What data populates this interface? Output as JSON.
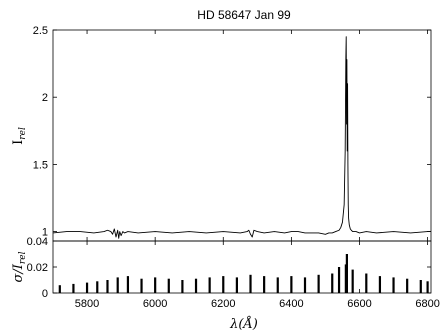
{
  "chart_data": [
    {
      "type": "line",
      "title": "HD 58647 Jan 99",
      "ylabel": "I",
      "ylabel_sub": "rel",
      "xlim": [
        5700,
        6810
      ],
      "ylim": [
        0.93,
        2.5
      ],
      "yticks": [
        1,
        1.5,
        2,
        2.5
      ],
      "ytick_labels": [
        "1",
        "1.5",
        "2",
        "2.5"
      ],
      "xticks": [
        5800,
        6000,
        6200,
        6400,
        6600,
        6800
      ],
      "series": [
        {
          "values_description": "relative intensity",
          "x": [
            5700,
            5740,
            5780,
            5820,
            5850,
            5860,
            5870,
            5875,
            5880,
            5885,
            5890,
            5893,
            5896,
            5900,
            5905,
            5910,
            5920,
            5950,
            6000,
            6050,
            6100,
            6150,
            6200,
            6250,
            6270,
            6275,
            6280,
            6285,
            6290,
            6300,
            6320,
            6350,
            6380,
            6400,
            6420,
            6440,
            6460,
            6480,
            6500,
            6510,
            6520,
            6530,
            6540,
            6545,
            6550,
            6555,
            6558,
            6560,
            6561,
            6562,
            6563,
            6564,
            6565,
            6566,
            6567,
            6568,
            6570,
            6573,
            6576,
            6580,
            6590,
            6600,
            6620,
            6650,
            6700,
            6750,
            6800,
            6810
          ],
          "y": [
            0.99,
            1.0,
            1.0,
            0.99,
            1.0,
            1.01,
            1.0,
            0.98,
            1.02,
            0.96,
            1.01,
            0.95,
            1.0,
            0.97,
            1.0,
            0.99,
            1.0,
            0.99,
            1.0,
            0.99,
            1.0,
            0.99,
            1.0,
            0.99,
            1.0,
            1.01,
            0.98,
            0.96,
            1.01,
            1.0,
            0.99,
            1.0,
            0.99,
            1.0,
            1.0,
            0.99,
            0.99,
            0.99,
            0.98,
            0.99,
            0.99,
            1.0,
            1.01,
            1.03,
            1.07,
            1.2,
            1.6,
            2.3,
            2.45,
            1.8,
            2.28,
            1.6,
            2.1,
            1.5,
            1.2,
            1.1,
            1.05,
            1.02,
            1.01,
            1.0,
            1.0,
            0.99,
            1.0,
            0.99,
            1.0,
            0.99,
            1.0,
            1.0
          ]
        }
      ]
    },
    {
      "type": "bar",
      "xlabel": "λ(Å)",
      "ylabel": "σ/I",
      "ylabel_sub": "rel",
      "xlim": [
        5700,
        6810
      ],
      "ylim": [
        0,
        0.04
      ],
      "yticks": [
        0,
        0.02,
        0.04
      ],
      "ytick_labels": [
        "0",
        "0.02",
        "0.04"
      ],
      "xticks": [
        5800,
        6000,
        6200,
        6400,
        6600,
        6800
      ],
      "xtick_labels": [
        "5800",
        "6000",
        "6200",
        "6400",
        "6600",
        "6800"
      ],
      "series": [
        {
          "values_description": "relative noise",
          "x": [
            5720,
            5760,
            5800,
            5830,
            5860,
            5890,
            5920,
            5960,
            6000,
            6040,
            6080,
            6120,
            6160,
            6200,
            6240,
            6280,
            6320,
            6360,
            6400,
            6440,
            6480,
            6520,
            6540,
            6560,
            6563,
            6580,
            6620,
            6660,
            6700,
            6740,
            6780,
            6800
          ],
          "y": [
            0.006,
            0.007,
            0.008,
            0.009,
            0.01,
            0.012,
            0.013,
            0.011,
            0.012,
            0.011,
            0.01,
            0.011,
            0.012,
            0.013,
            0.012,
            0.014,
            0.013,
            0.012,
            0.013,
            0.012,
            0.014,
            0.015,
            0.02,
            0.022,
            0.03,
            0.018,
            0.015,
            0.013,
            0.012,
            0.011,
            0.01,
            0.009
          ]
        }
      ]
    }
  ]
}
